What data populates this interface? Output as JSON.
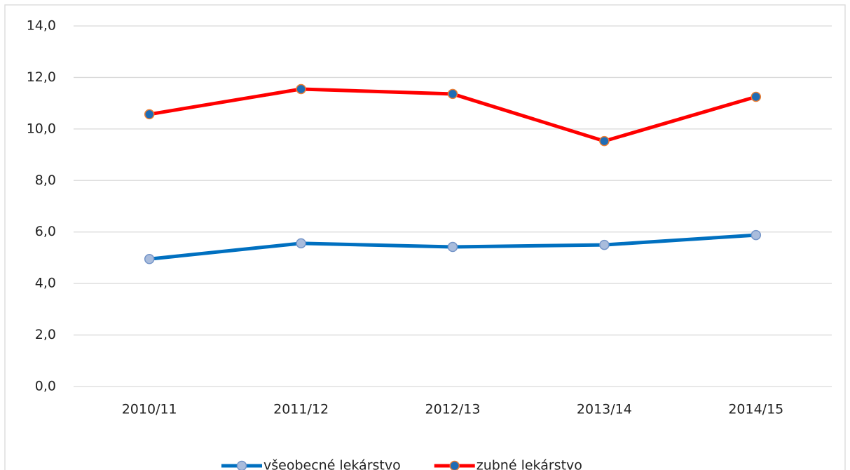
{
  "chart_data": {
    "type": "line",
    "categories": [
      "2010/11",
      "2011/12",
      "2012/13",
      "2013/14",
      "2014/15"
    ],
    "series": [
      {
        "name": "všeobecné lekárstvo",
        "color": "#0070c0",
        "marker_fill": "#a9bcdc",
        "marker_edge": "#7394c8",
        "values": [
          4.95,
          5.56,
          5.42,
          5.5,
          5.88
        ]
      },
      {
        "name": "zubné lekárstvo",
        "color": "#ff0000",
        "marker_fill": "#1f6cb4",
        "marker_edge": "#ed7d31",
        "values": [
          10.57,
          11.55,
          11.36,
          9.53,
          11.25
        ]
      }
    ],
    "ylim": [
      0,
      14
    ],
    "yticks": [
      {
        "value": 0,
        "label": "0,0"
      },
      {
        "value": 2,
        "label": "2,0"
      },
      {
        "value": 4,
        "label": "4,0"
      },
      {
        "value": 6,
        "label": "6,0"
      },
      {
        "value": 8,
        "label": "8,0"
      },
      {
        "value": 10,
        "label": "10,0"
      },
      {
        "value": 12,
        "label": "12,0"
      },
      {
        "value": 14,
        "label": "14,0"
      }
    ],
    "grid": true,
    "legend": "bottom"
  }
}
